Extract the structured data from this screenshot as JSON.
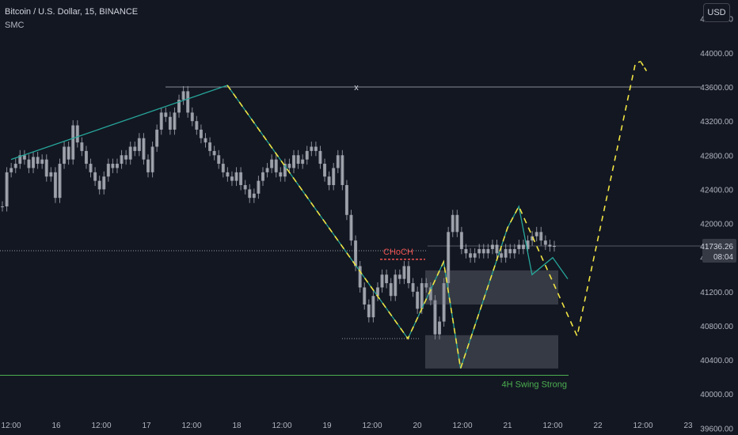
{
  "header": {
    "symbol": "Bitcoin / U.S. Dollar, 15, BINANCE",
    "indicator": "SMC"
  },
  "currency_button": "USD",
  "colors": {
    "background": "#131722",
    "text": "#b2b5be",
    "swing_line": "#26a69a",
    "projection": "#f0e442",
    "choch": "#ef5350",
    "swing_strong": "#4caf50",
    "zone": "#787b86",
    "candle": "#b2b5be"
  },
  "chart_data": {
    "type": "line",
    "ylim": [
      39520,
      44620
    ],
    "y_ticks": [
      "44400.00",
      "44000.00",
      "43600.00",
      "43200.00",
      "42800.00",
      "42400.00",
      "42000.00",
      "41600.00",
      "41200.00",
      "40800.00",
      "40400.00",
      "40000.00",
      "39600.00"
    ],
    "x_ticks": [
      "12:00",
      "16",
      "12:00",
      "17",
      "12:00",
      "18",
      "12:00",
      "19",
      "12:00",
      "20",
      "12:00",
      "21",
      "12:00",
      "22",
      "12:00",
      "23"
    ],
    "price_close": [
      42200,
      42600,
      42650,
      42700,
      42800,
      42750,
      42650,
      42780,
      42700,
      42750,
      42550,
      42600,
      42300,
      42700,
      42900,
      42750,
      43150,
      42950,
      42850,
      42700,
      42600,
      42500,
      42400,
      42550,
      42700,
      42650,
      42700,
      42800,
      42750,
      42900,
      42850,
      43000,
      42750,
      42600,
      42900,
      43100,
      43300,
      43250,
      43100,
      43300,
      43450,
      43550,
      43300,
      43200,
      43100,
      43000,
      42950,
      42850,
      42800,
      42700,
      42600,
      42550,
      42500,
      42600,
      42450,
      42400,
      42300,
      42350,
      42500,
      42600,
      42650,
      42750,
      42600,
      42550,
      42700,
      42650,
      42800,
      42700,
      42750,
      42850,
      42900,
      42850,
      42700,
      42550,
      42450,
      42650,
      42800,
      42450,
      42100,
      41800,
      41500,
      41250,
      41050,
      40900,
      41150,
      41250,
      41400,
      41300,
      41150,
      41400,
      41350,
      41500,
      41300,
      41200,
      41000,
      41300,
      41250,
      41100,
      40700,
      40850,
      41300,
      41900,
      42100,
      41900,
      41700,
      41650,
      41600,
      41650,
      41700,
      41650,
      41700,
      41750,
      41650,
      41600,
      41700,
      41650,
      41700,
      41750,
      41700,
      41800,
      41850,
      41900,
      41800,
      41750,
      41730,
      41736
    ],
    "swing_line": {
      "x": [
        "Dec 15 00:00",
        "Dec 17 09:30",
        "Dec 19 09:30",
        "Dec 19 19:00",
        "Dec 19 23:30",
        "Dec 20 12:00",
        "Dec 20 15:00",
        "Dec 20 18:30",
        "Dec 21 00:00",
        "Dec 21 04:00"
      ],
      "y": [
        42750,
        43620,
        40650,
        41550,
        40300,
        41950,
        42200,
        41400,
        41600,
        41350
      ]
    },
    "projection": {
      "x": [
        "Dec 17 09:30",
        "Dec 19 09:30",
        "Dec 19 19:00",
        "Dec 19 23:30",
        "Dec 20 12:00",
        "Dec 20 15:00",
        "Dec 21 06:30",
        "Dec 21 22:00",
        "Dec 21 23:30"
      ],
      "y": [
        43620,
        40650,
        41550,
        40300,
        41950,
        42200,
        40680,
        43880,
        43900
      ]
    },
    "swing_high_level": {
      "value": 43600,
      "label": "x"
    },
    "dotted_level": 41680,
    "choch": {
      "value": 41580,
      "label": "CHoCH"
    },
    "zones": [
      {
        "top": 41450,
        "bottom": 41050
      },
      {
        "top": 40690,
        "bottom": 40300
      }
    ],
    "swing_strong": {
      "value": 40220,
      "label": "4H Swing Strong"
    },
    "current_price": {
      "value": "41736.26",
      "countdown": "08:04"
    }
  }
}
